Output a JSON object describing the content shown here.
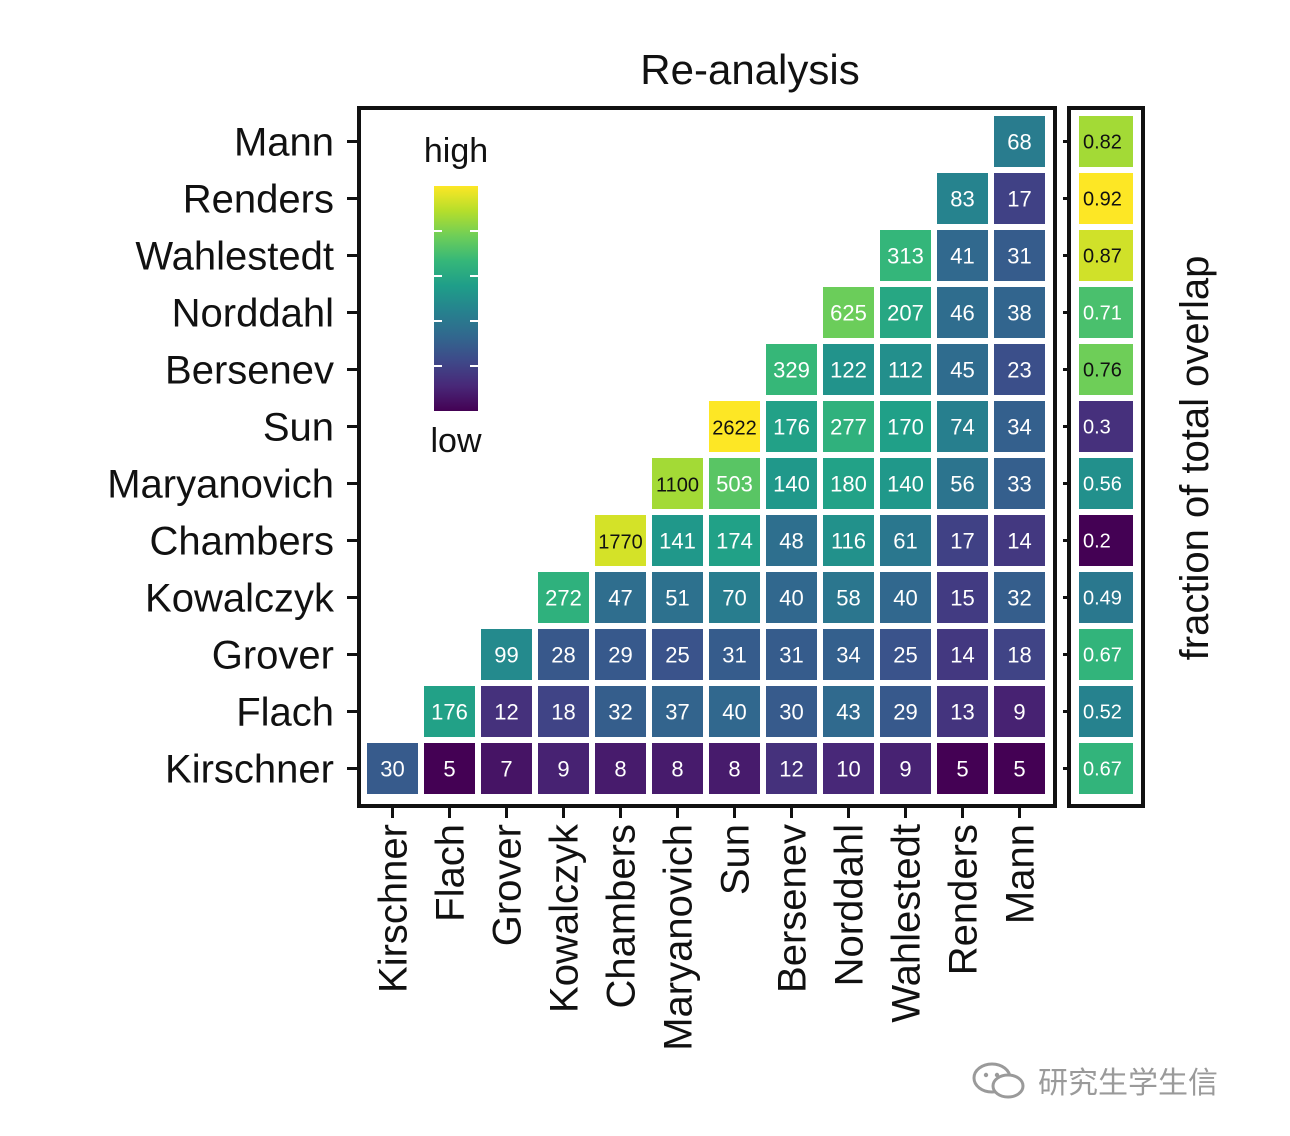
{
  "chart_data": [
    {
      "type": "heatmap",
      "title": "Re-analysis",
      "xlabel": "",
      "ylabel": "",
      "x_categories": [
        "Kirschner",
        "Flach",
        "Grover",
        "Kowalczyk",
        "Chambers",
        "Maryanovich",
        "Sun",
        "Bersenev",
        "Norddahl",
        "Wahlestedt",
        "Renders",
        "Mann"
      ],
      "y_categories": [
        "Kirschner",
        "Flach",
        "Grover",
        "Kowalczyk",
        "Chambers",
        "Maryanovich",
        "Sun",
        "Bersenev",
        "Norddahl",
        "Wahlestedt",
        "Renders",
        "Mann"
      ],
      "values": [
        [
          30,
          5,
          7,
          9,
          8,
          8,
          8,
          12,
          10,
          9,
          5,
          5
        ],
        [
          null,
          176,
          12,
          18,
          32,
          37,
          40,
          30,
          43,
          29,
          13,
          9
        ],
        [
          null,
          null,
          99,
          28,
          29,
          25,
          31,
          31,
          34,
          25,
          14,
          18
        ],
        [
          null,
          null,
          null,
          272,
          47,
          51,
          70,
          40,
          58,
          40,
          15,
          32
        ],
        [
          null,
          null,
          null,
          null,
          1770,
          141,
          174,
          48,
          116,
          61,
          17,
          14
        ],
        [
          null,
          null,
          null,
          null,
          null,
          1100,
          503,
          140,
          180,
          140,
          56,
          33
        ],
        [
          null,
          null,
          null,
          null,
          null,
          null,
          2622,
          176,
          277,
          170,
          74,
          34
        ],
        [
          null,
          null,
          null,
          null,
          null,
          null,
          null,
          329,
          122,
          112,
          45,
          23
        ],
        [
          null,
          null,
          null,
          null,
          null,
          null,
          null,
          null,
          625,
          207,
          46,
          38
        ],
        [
          null,
          null,
          null,
          null,
          null,
          null,
          null,
          null,
          null,
          313,
          41,
          31
        ],
        [
          null,
          null,
          null,
          null,
          null,
          null,
          null,
          null,
          null,
          null,
          83,
          17
        ],
        [
          null,
          null,
          null,
          null,
          null,
          null,
          null,
          null,
          null,
          null,
          null,
          68
        ]
      ],
      "legend": {
        "position": "top-left",
        "high_label": "high",
        "low_label": "low",
        "palette": "viridis"
      }
    },
    {
      "type": "heatmap",
      "title": "",
      "ylabel": "fraction of total overlap",
      "categories": [
        "Kirschner",
        "Flach",
        "Grover",
        "Kowalczyk",
        "Chambers",
        "Maryanovich",
        "Sun",
        "Bersenev",
        "Norddahl",
        "Wahlestedt",
        "Renders",
        "Mann"
      ],
      "values": [
        0.67,
        0.52,
        0.67,
        0.49,
        0.2,
        0.56,
        0.3,
        0.76,
        0.71,
        0.87,
        0.92,
        0.82
      ],
      "palette": "viridis"
    }
  ],
  "colors": {
    "viridis": [
      "#440154",
      "#482878",
      "#3e4989",
      "#31688e",
      "#26828e",
      "#1f9e89",
      "#35b779",
      "#6ece58",
      "#b5de2b",
      "#fde725"
    ],
    "cell_text_light": "#ffffff",
    "cell_text_dark": "#111111",
    "frame": "#111111"
  },
  "watermark": {
    "icon": "wechat-logo-icon",
    "text": "研究生学生信"
  }
}
